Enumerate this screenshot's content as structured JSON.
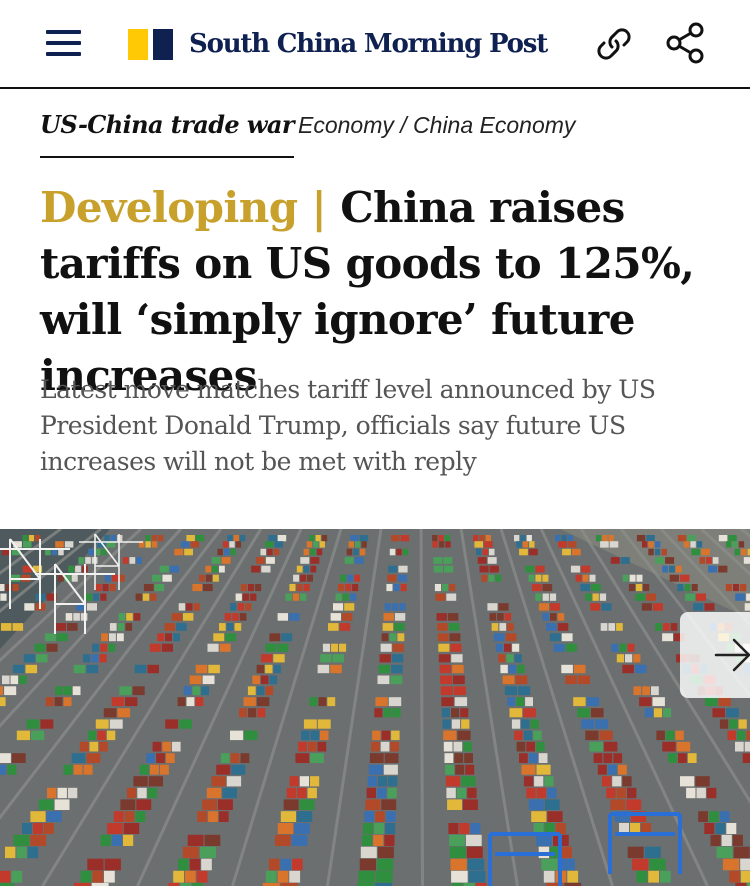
{
  "header": {
    "brand": "South China Morning Post",
    "brand_colors": {
      "navy": "#0f2151",
      "yellow": "#ffca05"
    },
    "icons": [
      "menu-icon",
      "link-icon",
      "share-icon"
    ]
  },
  "article": {
    "topic": "US-China trade war",
    "section": "Economy / China Economy",
    "developing_label": "Developing",
    "separator": "|",
    "headline": "China raises tariffs on US goods to 125%, will ‘simply ignore’ future increases",
    "summary": "Latest move matches tariff level announced by US President Donald Trump, officials say future US increases will not be met with reply",
    "accent_color": "#c8a12c"
  },
  "gallery": {
    "next_icon": "arrow-right-icon"
  }
}
